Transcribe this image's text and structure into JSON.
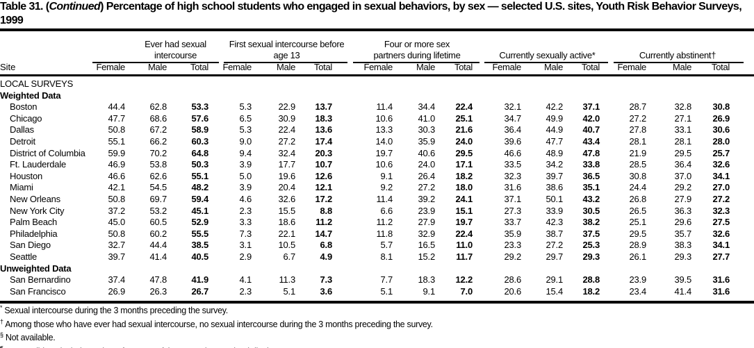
{
  "title": {
    "prefix": "Table 31. (",
    "continued": "Continued",
    "rest": ") Percentage of high school students who engaged in sexual behaviors, by sex — selected U.S. sites, Youth Risk Behavior Surveys, 1999"
  },
  "header": {
    "site": "Site",
    "groups": [
      {
        "label": "Ever had sexual intercourse"
      },
      {
        "label": "First sexual intercourse before age 13"
      },
      {
        "label": "Four or more sex partners during lifetime"
      },
      {
        "label": "Currently sexually active*"
      },
      {
        "label": "Currently abstinent†"
      }
    ],
    "sub": [
      "Female",
      "Male",
      "Total"
    ]
  },
  "sections": [
    {
      "label": "LOCAL SURVEYS",
      "bold": false,
      "rows": []
    },
    {
      "label": "Weighted Data",
      "bold": true,
      "rows": [
        [
          "Boston",
          "44.4",
          "62.8",
          "53.3",
          "5.3",
          "22.9",
          "13.7",
          "11.4",
          "34.4",
          "22.4",
          "32.1",
          "42.2",
          "37.1",
          "28.7",
          "32.8",
          "30.8"
        ],
        [
          "Chicago",
          "47.7",
          "68.6",
          "57.6",
          "6.5",
          "30.9",
          "18.3",
          "10.6",
          "41.0",
          "25.1",
          "34.7",
          "49.9",
          "42.0",
          "27.2",
          "27.1",
          "26.9"
        ],
        [
          "Dallas",
          "50.8",
          "67.2",
          "58.9",
          "5.3",
          "22.4",
          "13.6",
          "13.3",
          "30.3",
          "21.6",
          "36.4",
          "44.9",
          "40.7",
          "27.8",
          "33.1",
          "30.6"
        ],
        [
          "Detroit",
          "55.1",
          "66.2",
          "60.3",
          "9.0",
          "27.2",
          "17.4",
          "14.0",
          "35.9",
          "24.0",
          "39.6",
          "47.7",
          "43.4",
          "28.1",
          "28.1",
          "28.0"
        ],
        [
          "District of Columbia",
          "59.9",
          "70.2",
          "64.8",
          "9.4",
          "32.4",
          "20.3",
          "19.7",
          "40.6",
          "29.5",
          "46.6",
          "48.9",
          "47.8",
          "21.9",
          "29.5",
          "25.7"
        ],
        [
          "Ft. Lauderdale",
          "46.9",
          "53.8",
          "50.3",
          "3.9",
          "17.7",
          "10.7",
          "10.6",
          "24.0",
          "17.1",
          "33.5",
          "34.2",
          "33.8",
          "28.5",
          "36.4",
          "32.6"
        ],
        [
          "Houston",
          "46.6",
          "62.6",
          "55.1",
          "5.0",
          "19.6",
          "12.6",
          "9.1",
          "26.4",
          "18.2",
          "32.3",
          "39.7",
          "36.5",
          "30.8",
          "37.0",
          "34.1"
        ],
        [
          "Miami",
          "42.1",
          "54.5",
          "48.2",
          "3.9",
          "20.4",
          "12.1",
          "9.2",
          "27.2",
          "18.0",
          "31.6",
          "38.6",
          "35.1",
          "24.4",
          "29.2",
          "27.0"
        ],
        [
          "New Orleans",
          "50.8",
          "69.7",
          "59.4",
          "4.6",
          "32.6",
          "17.2",
          "11.4",
          "39.2",
          "24.1",
          "37.1",
          "50.1",
          "43.2",
          "26.8",
          "27.9",
          "27.2"
        ],
        [
          "New York City",
          "37.2",
          "53.2",
          "45.1",
          "2.3",
          "15.5",
          "8.8",
          "6.6",
          "23.9",
          "15.1",
          "27.3",
          "33.9",
          "30.5",
          "26.5",
          "36.3",
          "32.3"
        ],
        [
          "Palm Beach",
          "45.0",
          "60.5",
          "52.9",
          "3.3",
          "18.6",
          "11.2",
          "11.2",
          "27.9",
          "19.7",
          "33.7",
          "42.3",
          "38.2",
          "25.1",
          "29.6",
          "27.5"
        ],
        [
          "Philadelphia",
          "50.8",
          "60.2",
          "55.5",
          "7.3",
          "22.1",
          "14.7",
          "11.8",
          "32.9",
          "22.4",
          "35.9",
          "38.7",
          "37.5",
          "29.5",
          "35.7",
          "32.6"
        ],
        [
          "San Diego",
          "32.7",
          "44.4",
          "38.5",
          "3.1",
          "10.5",
          "6.8",
          "5.7",
          "16.5",
          "11.0",
          "23.3",
          "27.2",
          "25.3",
          "28.9",
          "38.3",
          "34.1"
        ],
        [
          "Seattle",
          "39.7",
          "41.4",
          "40.5",
          "2.9",
          "6.7",
          "4.9",
          "8.1",
          "15.2",
          "11.7",
          "29.2",
          "29.7",
          "29.3",
          "26.1",
          "29.3",
          "27.7"
        ]
      ]
    },
    {
      "label": "Unweighted Data",
      "bold": true,
      "rows": [
        [
          "San Bernardino",
          "37.4",
          "47.8",
          "41.9",
          "4.1",
          "11.3",
          "7.3",
          "7.7",
          "18.3",
          "12.2",
          "28.6",
          "29.1",
          "28.8",
          "23.9",
          "39.5",
          "31.6"
        ],
        [
          "San Francisco",
          "26.9",
          "26.3",
          "26.7",
          "2.3",
          "5.1",
          "3.6",
          "5.1",
          "9.1",
          "7.0",
          "20.6",
          "15.4",
          "18.2",
          "23.4",
          "41.4",
          "31.6"
        ]
      ]
    }
  ],
  "footnotes": [
    {
      "mark": "*",
      "text": "Sexual intercourse during the 3 months preceding the survey."
    },
    {
      "mark": "†",
      "text": "Among those who have ever had sexual intercourse, no sexual intercourse during the 3 months preceding the survey."
    },
    {
      "mark": "§",
      "text": "Not available."
    },
    {
      "mark": "¶",
      "text": "Survey did not include students from one of the state's large school districts."
    }
  ]
}
